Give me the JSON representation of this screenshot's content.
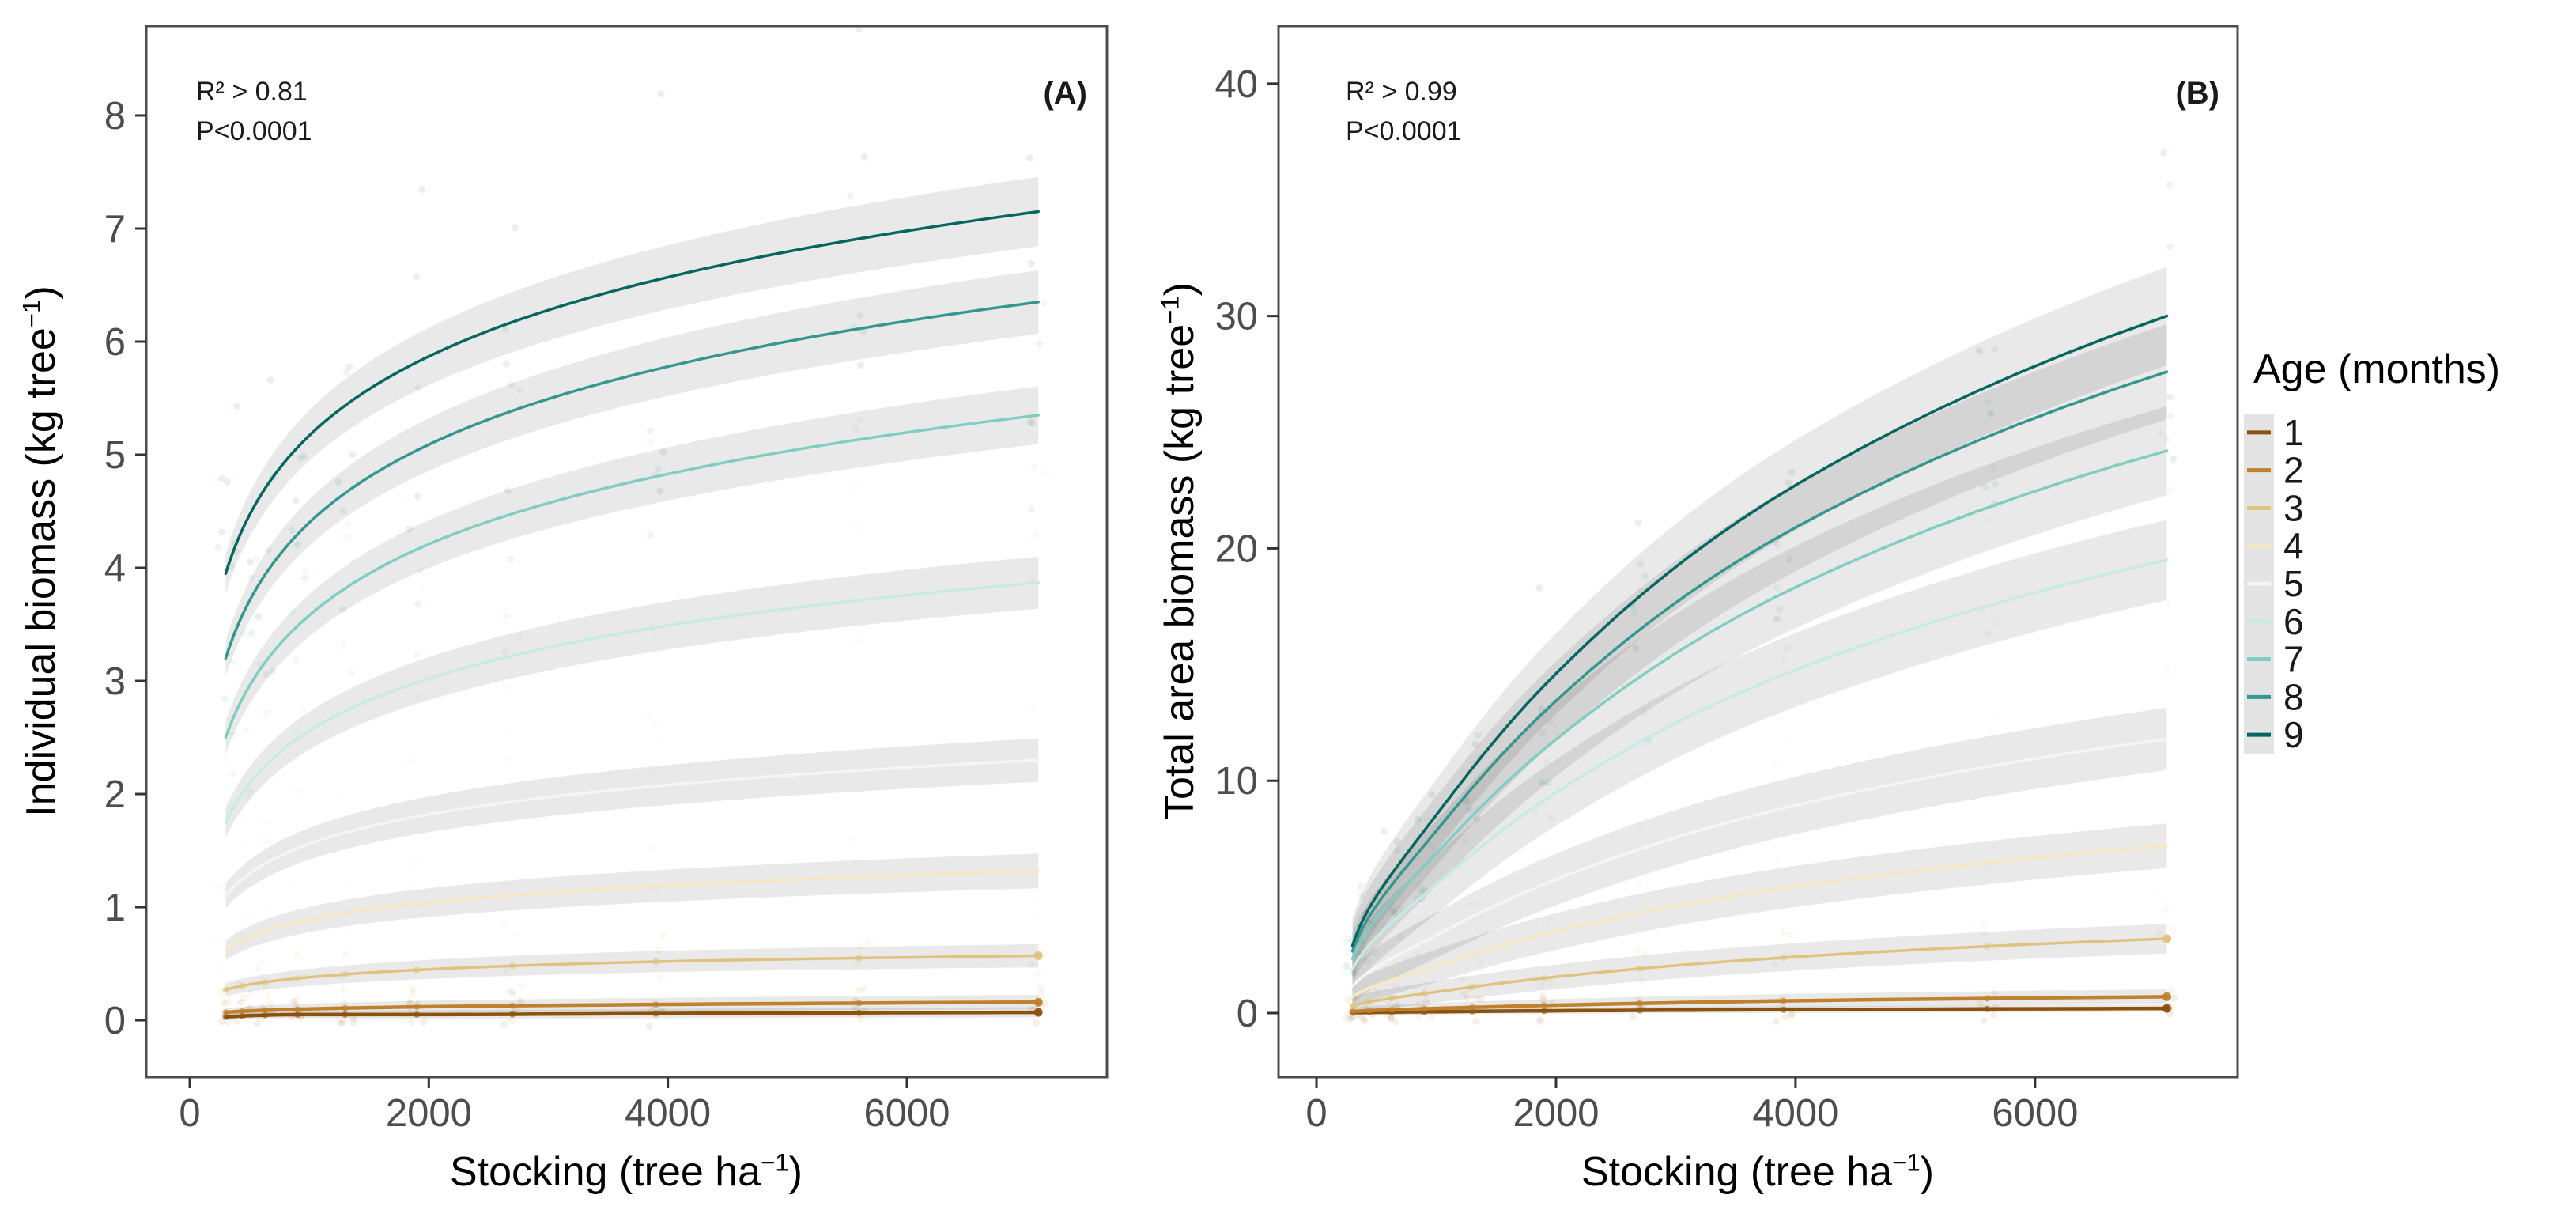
{
  "figure": {
    "background": "#ffffff",
    "frame_color": "#4d4d4d",
    "tick_color": "#333333",
    "tick_label_color": "#4d4d4d",
    "ribbon_color": "rgba(0,0,0,0.085)",
    "legend_strip_color": "#e4e4e4"
  },
  "legend": {
    "title": "Age (months)",
    "entries": [
      {
        "label": "1",
        "color": "#8c510a"
      },
      {
        "label": "2",
        "color": "#bf812d"
      },
      {
        "label": "3",
        "color": "#dfc27d"
      },
      {
        "label": "4",
        "color": "#f6e8c3"
      },
      {
        "label": "5",
        "color": "#f5f5f5"
      },
      {
        "label": "6",
        "color": "#c7eae5"
      },
      {
        "label": "7",
        "color": "#80cdc1"
      },
      {
        "label": "8",
        "color": "#35978f"
      },
      {
        "label": "9",
        "color": "#01665e"
      }
    ]
  },
  "chart_data": [
    {
      "panel": "A",
      "type": "line",
      "letter": "(A)",
      "r2": "R² > 0.81",
      "p": "P<0.0001",
      "xlabel": {
        "pre": "Stocking (tree ha",
        "sup": "−1",
        "post": ")"
      },
      "ylabel": {
        "pre": "Individual biomass (kg tree",
        "sup": "−1",
        "post": ")"
      },
      "x_ticks": [
        0,
        2000,
        4000,
        6000
      ],
      "y_ticks": [
        0,
        1,
        2,
        3,
        4,
        5,
        6,
        7,
        8
      ],
      "xlim": [
        -364,
        7674
      ],
      "ylim": [
        -0.503,
        8.79
      ],
      "grid": false,
      "legend_position": "right",
      "x": [
        300,
        1000,
        2000,
        4000,
        7100
      ],
      "stations": [
        300,
        440,
        630,
        900,
        1300,
        1900,
        2700,
        3900,
        5600,
        7100
      ],
      "series": [
        {
          "age": 1,
          "color": "#8c510a",
          "ribbon": 0.035,
          "y": [
            0.03,
            0.05,
            0.05,
            0.06,
            0.07
          ]
        },
        {
          "age": 2,
          "color": "#bf812d",
          "ribbon": 0.05,
          "y": [
            0.07,
            0.1,
            0.12,
            0.14,
            0.16
          ]
        },
        {
          "age": 3,
          "color": "#dfc27d",
          "ribbon": 0.08,
          "y": [
            0.27,
            0.38,
            0.45,
            0.52,
            0.57
          ]
        },
        {
          "age": 4,
          "color": "#f6e8c3",
          "ribbon": 0.12,
          "y": [
            0.62,
            0.89,
            1.04,
            1.19,
            1.32
          ]
        },
        {
          "age": 5,
          "color": "#f5f5f5",
          "ribbon": 0.15,
          "y": [
            1.1,
            1.56,
            1.82,
            2.08,
            2.3
          ]
        },
        {
          "age": 6,
          "color": "#c7eae5",
          "ribbon": 0.18,
          "y": [
            1.75,
            2.56,
            3.02,
            3.49,
            3.87
          ]
        },
        {
          "age": 7,
          "color": "#80cdc1",
          "ribbon": 0.2,
          "y": [
            2.5,
            3.58,
            4.21,
            4.83,
            5.35
          ]
        },
        {
          "age": 8,
          "color": "#35978f",
          "ribbon": 0.22,
          "y": [
            3.2,
            4.4,
            5.09,
            5.78,
            6.35
          ]
        },
        {
          "age": 9,
          "color": "#01665e",
          "ribbon": 0.24,
          "y": [
            3.95,
            5.17,
            5.87,
            6.57,
            7.15
          ]
        }
      ]
    },
    {
      "panel": "B",
      "type": "line",
      "letter": "(B)",
      "r2": "R² > 0.99",
      "p": "P<0.0001",
      "xlabel": {
        "pre": "Stocking (tree ha",
        "sup": "−1",
        "post": ")"
      },
      "ylabel": {
        "pre": "Total area biomass (kg tree",
        "sup": "−1",
        "post": ")"
      },
      "x_ticks": [
        0,
        2000,
        4000,
        6000
      ],
      "y_ticks": [
        0,
        10,
        20,
        30,
        40
      ],
      "xlim": [
        -317,
        7691
      ],
      "ylim": [
        -2.757,
        42.48
      ],
      "grid": false,
      "legend_position": "right",
      "x": [
        300,
        1000,
        2000,
        4000,
        7100
      ],
      "stations": [
        300,
        440,
        630,
        900,
        1300,
        1900,
        2700,
        3900,
        5600,
        7100
      ],
      "series": [
        {
          "age": 1,
          "color": "#8c510a",
          "ribbon": 0.12,
          "y": [
            0.02,
            0.06,
            0.1,
            0.15,
            0.2
          ]
        },
        {
          "age": 2,
          "color": "#bf812d",
          "ribbon": 0.25,
          "y": [
            0.07,
            0.2,
            0.34,
            0.53,
            0.7
          ]
        },
        {
          "age": 3,
          "color": "#dfc27d",
          "ribbon": 0.5,
          "y": [
            0.31,
            0.91,
            1.56,
            2.42,
            3.2
          ]
        },
        {
          "age": 4,
          "color": "#f6e8c3",
          "ribbon": 0.75,
          "y": [
            0.69,
            2.04,
            3.51,
            5.45,
            7.2
          ]
        },
        {
          "age": 5,
          "color": "#f5f5f5",
          "ribbon": 1.05,
          "y": [
            1.14,
            3.35,
            5.75,
            8.94,
            11.8
          ]
        },
        {
          "age": 6,
          "color": "#c7eae5",
          "ribbon": 1.35,
          "y": [
            1.88,
            5.54,
            9.49,
            14.77,
            19.5
          ]
        },
        {
          "age": 7,
          "color": "#80cdc1",
          "ribbon": 1.5,
          "y": [
            2.34,
            6.87,
            11.78,
            18.33,
            24.2
          ]
        },
        {
          "age": 8,
          "color": "#35978f",
          "ribbon": 1.6,
          "y": [
            2.66,
            7.84,
            13.44,
            20.9,
            27.6
          ]
        },
        {
          "age": 9,
          "color": "#01665e",
          "ribbon": 1.65,
          "y": [
            2.9,
            8.52,
            14.61,
            22.72,
            30.0
          ]
        }
      ]
    }
  ]
}
